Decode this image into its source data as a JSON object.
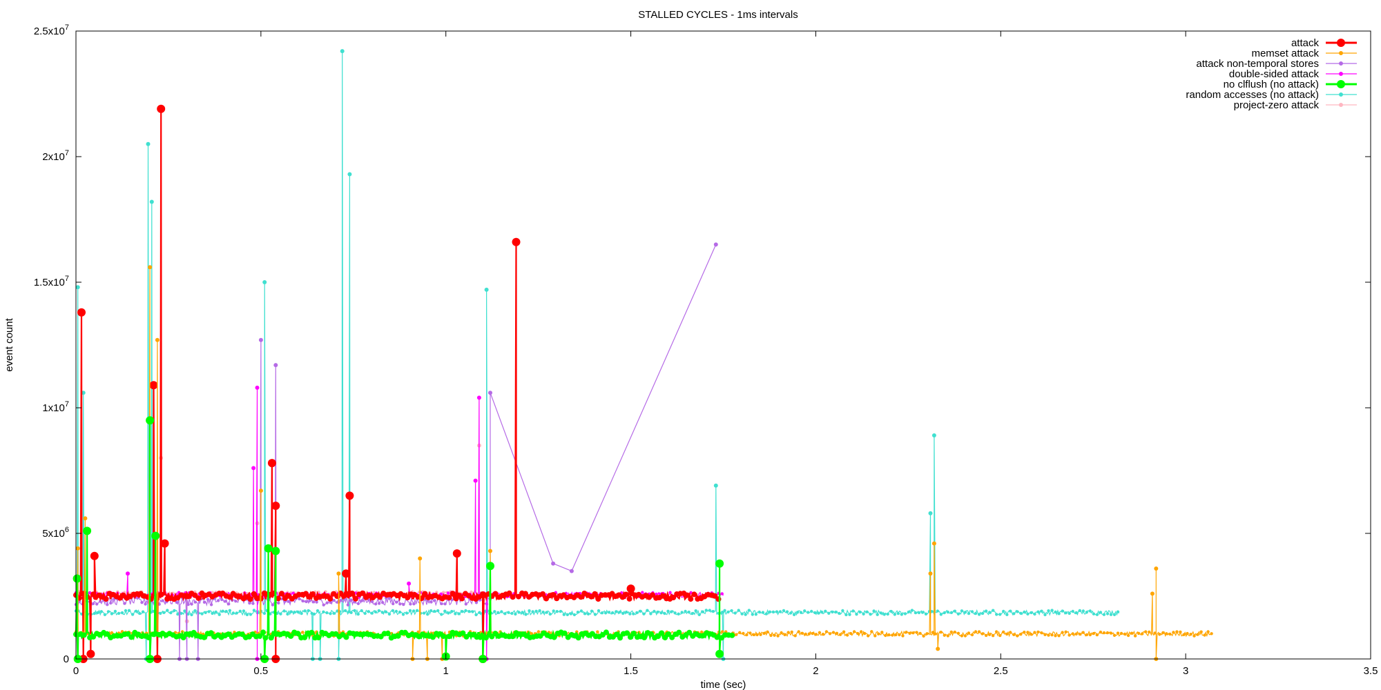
{
  "chart_data": {
    "type": "line",
    "title": "STALLED CYCLES - 1ms intervals",
    "xlabel": "time (sec)",
    "ylabel": "event count",
    "xlim": [
      0,
      3.5
    ],
    "ylim": [
      0,
      25000000
    ],
    "x_ticks": [
      0,
      0.5,
      1,
      1.5,
      2,
      2.5,
      3,
      3.5
    ],
    "x_tick_labels": [
      "0",
      "0.5",
      "1",
      "1.5",
      "2",
      "2.5",
      "3",
      "3.5"
    ],
    "y_ticks": [
      0,
      5000000,
      10000000,
      15000000,
      20000000,
      25000000
    ],
    "y_tick_labels": [
      {
        "base": "0",
        "exp": ""
      },
      {
        "base": "5x10",
        "exp": "6"
      },
      {
        "base": "1x10",
        "exp": "7"
      },
      {
        "base": "1.5x10",
        "exp": "7"
      },
      {
        "base": "2x10",
        "exp": "7"
      },
      {
        "base": "2.5x10",
        "exp": "7"
      }
    ],
    "grid": false,
    "legend_position": "top-right",
    "series": [
      {
        "name": "attack",
        "color": "#ff0000",
        "x_end": 1.74,
        "baseline": 2500000,
        "noise": 120000,
        "spikes": [
          [
            0.015,
            13800000
          ],
          [
            0.05,
            4100000
          ],
          [
            0.21,
            10900000
          ],
          [
            0.23,
            21900000
          ],
          [
            0.24,
            4600000
          ],
          [
            0.53,
            7800000
          ],
          [
            0.54,
            6100000
          ],
          [
            0.74,
            6500000
          ],
          [
            0.73,
            3400000
          ],
          [
            1.03,
            4200000
          ],
          [
            1.19,
            16600000
          ],
          [
            1.5,
            2800000
          ]
        ],
        "dips": [
          [
            0.02,
            0
          ],
          [
            0.04,
            200000
          ],
          [
            0.22,
            0
          ],
          [
            0.54,
            0
          ],
          [
            1.1,
            0
          ]
        ]
      },
      {
        "name": "memset attack",
        "color": "#ffa500",
        "x_end": 3.07,
        "baseline": 1000000,
        "noise": 90000,
        "spikes": [
          [
            0.005,
            4400000
          ],
          [
            0.025,
            5600000
          ],
          [
            0.2,
            15600000
          ],
          [
            0.22,
            12700000
          ],
          [
            0.5,
            6700000
          ],
          [
            0.71,
            3400000
          ],
          [
            0.93,
            4000000
          ],
          [
            1.12,
            4300000
          ],
          [
            2.31,
            3400000
          ],
          [
            2.32,
            4600000
          ],
          [
            2.92,
            3600000
          ],
          [
            2.91,
            2600000
          ]
        ],
        "dips": [
          [
            0.91,
            0
          ],
          [
            0.95,
            0
          ],
          [
            0.99,
            0
          ],
          [
            2.33,
            400000
          ],
          [
            2.92,
            0
          ]
        ]
      },
      {
        "name": "attack non-temporal stores",
        "color": "#b56ae6",
        "x_end": 1.12,
        "baseline": 2300000,
        "noise": 150000,
        "spikes": [
          [
            0.5,
            12700000
          ],
          [
            0.54,
            11700000
          ],
          [
            1.12,
            10600000
          ],
          [
            1.29,
            3800000
          ],
          [
            1.34,
            3500000
          ],
          [
            1.73,
            16500000
          ]
        ],
        "dips": [
          [
            0.28,
            0
          ],
          [
            0.3,
            0
          ],
          [
            0.33,
            0
          ]
        ]
      },
      {
        "name": "double-sided attack",
        "color": "#ff00ff",
        "x_end": 1.75,
        "baseline": 2550000,
        "noise": 100000,
        "spikes": [
          [
            0.49,
            10800000
          ],
          [
            0.48,
            7600000
          ],
          [
            1.09,
            10400000
          ],
          [
            1.08,
            7100000
          ],
          [
            0.14,
            3400000
          ],
          [
            0.9,
            3000000
          ]
        ],
        "dips": [
          [
            0.49,
            0
          ],
          [
            1.11,
            0
          ]
        ]
      },
      {
        "name": "no clflush (no attack)",
        "color": "#00ff00",
        "x_end": 1.78,
        "baseline": 950000,
        "noise": 110000,
        "spikes": [
          [
            0.003,
            3200000
          ],
          [
            0.03,
            5100000
          ],
          [
            0.2,
            9500000
          ],
          [
            0.215,
            4900000
          ],
          [
            0.52,
            4400000
          ],
          [
            0.54,
            4300000
          ],
          [
            1.12,
            3700000
          ],
          [
            1.74,
            3800000
          ]
        ],
        "dips": [
          [
            0.005,
            0
          ],
          [
            0.2,
            0
          ],
          [
            0.51,
            0
          ],
          [
            1.0,
            100000
          ],
          [
            1.1,
            0
          ],
          [
            1.74,
            200000
          ]
        ]
      },
      {
        "name": "random accesses (no attack)",
        "color": "#40e0d0",
        "x_end": 2.82,
        "baseline": 1850000,
        "noise": 90000,
        "spikes": [
          [
            0.005,
            14800000
          ],
          [
            0.02,
            10600000
          ],
          [
            0.195,
            20500000
          ],
          [
            0.205,
            18200000
          ],
          [
            0.51,
            15000000
          ],
          [
            0.72,
            24200000
          ],
          [
            0.74,
            19300000
          ],
          [
            1.11,
            14700000
          ],
          [
            1.73,
            6900000
          ],
          [
            2.31,
            5800000
          ],
          [
            2.32,
            8900000
          ]
        ],
        "dips": [
          [
            0.19,
            0
          ],
          [
            0.64,
            0
          ],
          [
            0.66,
            0
          ],
          [
            0.71,
            0
          ],
          [
            1.1,
            0
          ],
          [
            1.75,
            0
          ]
        ]
      },
      {
        "name": "project-zero attack",
        "color": "#ffb6c1",
        "x_end": 1.1,
        "baseline": 2600000,
        "noise": 80000,
        "spikes": [
          [
            0.23,
            8000000
          ],
          [
            0.49,
            5400000
          ],
          [
            1.09,
            8500000
          ]
        ],
        "dips": [
          [
            0.3,
            1500000
          ]
        ]
      }
    ]
  }
}
